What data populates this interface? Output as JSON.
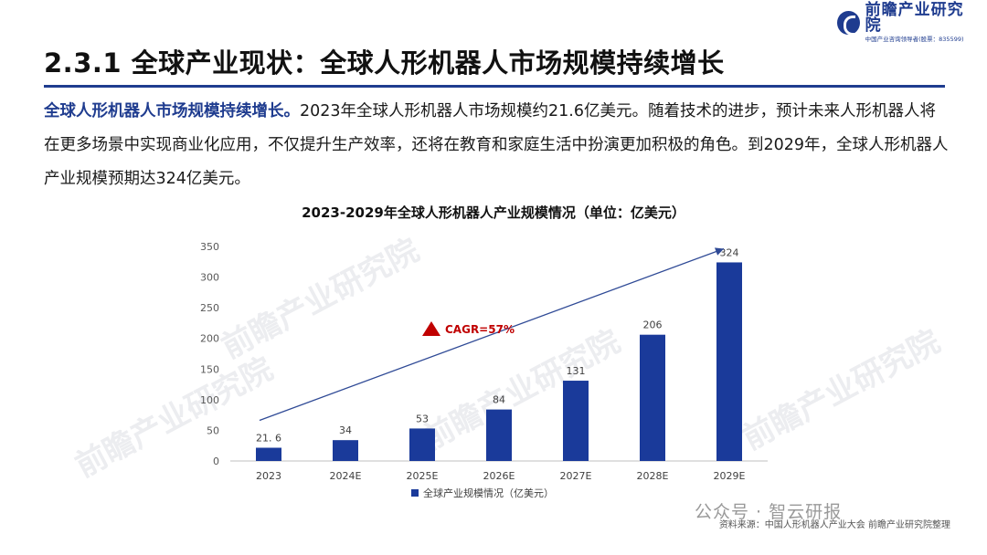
{
  "brand": {
    "name": "前瞻产业研究院",
    "subtitle": "中国产业咨询领导者(股票：835599)",
    "watermark": "前瞻产业研究院"
  },
  "page": {
    "title": "2.3.1 全球产业现状：全球人形机器人市场规模持续增长",
    "intro_lead": "全球人形机器人市场规模持续增长。",
    "intro_body": "2023年全球人形机器人市场规模约21.6亿美元。随着技术的进步，预计未来人形机器人将在更多场景中实现商业化应用，不仅提升生产效率，还将在教育和家庭生活中扮演更加积极的角色。到2029年，全球人形机器人产业规模预期达324亿美元。",
    "source": "资料来源：中国人形机器人产业大会 前瞻产业研究院整理",
    "wechat": "公众号 · 智云研报"
  },
  "colors": {
    "brand": "#1f3c8f",
    "bar": "#1a3a9a",
    "axis": "#bfbfbf",
    "annotation": "#c00000"
  },
  "chart_data": {
    "type": "bar",
    "title": "2023-2029年全球人形机器人产业规模情况（单位：亿美元）",
    "categories": [
      "2023",
      "2024E",
      "2025E",
      "2026E",
      "2027E",
      "2028E",
      "2029E"
    ],
    "series": [
      {
        "name": "全球产业规模情况（亿美元）",
        "values": [
          21.6,
          34,
          53,
          84,
          131,
          206,
          324
        ],
        "labels": [
          "21. 6",
          "34",
          "53",
          "84",
          "131",
          "206",
          "324"
        ]
      }
    ],
    "ylim": [
      0,
      350
    ],
    "yticks": [
      0,
      50,
      100,
      150,
      200,
      250,
      300,
      350
    ],
    "grid": false,
    "legend": "bottom",
    "annotation": {
      "text": "CAGR=57%",
      "icon": "up-triangle-icon"
    },
    "trend_arrow": {
      "from": "2023",
      "to": "2029E"
    }
  }
}
